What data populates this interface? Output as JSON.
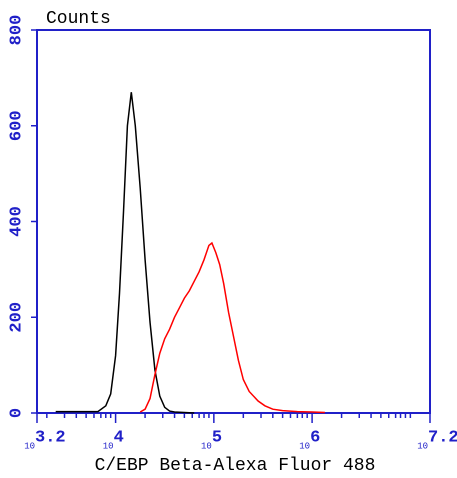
{
  "chart_data": {
    "type": "line",
    "xscale": "log-exponent",
    "y_label": "Counts",
    "x_label": "C/EBP Beta-Alexa Fluor 488",
    "xlim": [
      3.2,
      7.2
    ],
    "ylim": [
      0,
      800
    ],
    "yticks": [
      0,
      200,
      400,
      600,
      800
    ],
    "xticks": [
      {
        "value": 3.2,
        "label": "10",
        "exponent": "3.2"
      },
      {
        "value": 4,
        "label": "10",
        "exponent": "4"
      },
      {
        "value": 5,
        "label": "10",
        "exponent": "5"
      },
      {
        "value": 6,
        "label": "10",
        "exponent": "6"
      },
      {
        "value": 7.2,
        "label": "10",
        "exponent": "7.2"
      }
    ],
    "xminor": [
      3.3,
      3.48,
      3.6,
      3.7,
      3.78,
      3.85,
      3.9,
      3.95,
      4.3,
      4.48,
      4.6,
      4.7,
      4.78,
      4.85,
      4.9,
      4.95,
      5.3,
      5.48,
      5.6,
      5.7,
      5.78,
      5.85,
      5.9,
      5.95,
      6.3,
      6.48,
      6.6,
      6.7,
      6.78,
      6.85,
      6.9,
      6.95,
      7.0
    ],
    "series": [
      {
        "color": "#000000",
        "x": [
          3.39,
          3.6,
          3.82,
          3.9,
          3.95,
          4.0,
          4.04,
          4.08,
          4.12,
          4.16,
          4.2,
          4.25,
          4.3,
          4.35,
          4.4,
          4.45,
          4.5,
          4.55,
          4.6,
          4.7,
          4.8
        ],
        "values": [
          3,
          3,
          3,
          15,
          40,
          120,
          250,
          420,
          600,
          670,
          600,
          470,
          320,
          190,
          90,
          35,
          12,
          4,
          2,
          1,
          0
        ]
      },
      {
        "color": "#ff0000",
        "x": [
          4.25,
          4.3,
          4.35,
          4.4,
          4.45,
          4.5,
          4.55,
          4.6,
          4.65,
          4.7,
          4.75,
          4.8,
          4.85,
          4.9,
          4.95,
          4.98,
          5.02,
          5.06,
          5.1,
          5.15,
          5.2,
          5.25,
          5.3,
          5.36,
          5.45,
          5.52,
          5.6,
          5.7,
          5.85,
          6.0,
          6.13
        ],
        "values": [
          2,
          8,
          30,
          80,
          125,
          155,
          175,
          200,
          220,
          240,
          255,
          275,
          295,
          320,
          350,
          355,
          335,
          310,
          270,
          210,
          160,
          110,
          70,
          45,
          25,
          15,
          8,
          5,
          3,
          2,
          1
        ]
      }
    ]
  }
}
